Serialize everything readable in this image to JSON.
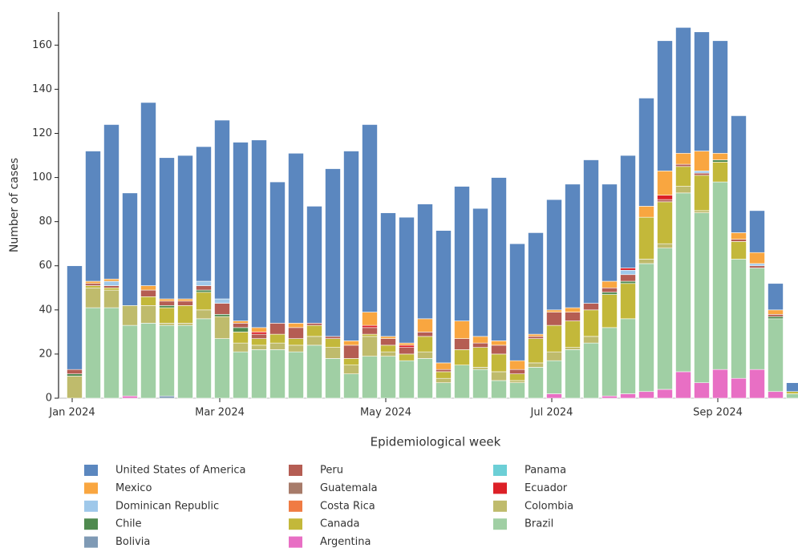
{
  "chart_data": {
    "type": "stacked-bar",
    "x_label": "Epidemiological week",
    "y_label": "Number of cases",
    "categories": [
      "Jan 2024",
      null,
      null,
      null,
      null,
      null,
      null,
      null,
      "Mar 2024",
      null,
      null,
      null,
      null,
      null,
      null,
      null,
      null,
      "May 2024",
      null,
      null,
      null,
      null,
      null,
      null,
      null,
      null,
      "Jul 2024",
      null,
      null,
      null,
      null,
      null,
      null,
      null,
      null,
      "Sep 2024",
      null,
      null,
      null,
      null
    ],
    "ylim": [
      0,
      175
    ],
    "yticks": [
      0,
      20,
      40,
      60,
      80,
      100,
      120,
      140,
      160
    ],
    "series": [
      {
        "name": "United States of America",
        "color": "#5b87bf",
        "values": [
          47,
          59,
          70,
          51,
          83,
          64,
          65,
          61,
          81,
          81,
          85,
          64,
          77,
          53,
          76,
          86,
          85,
          56,
          57,
          52,
          60,
          61,
          58,
          74,
          53,
          46,
          50,
          56,
          65,
          44,
          51,
          49,
          59,
          57,
          54,
          51,
          53,
          19,
          12,
          4
        ]
      },
      {
        "name": "Mexico",
        "color": "#f9a640",
        "values": [
          0,
          1,
          1,
          0,
          2,
          1,
          1,
          0,
          0,
          1,
          2,
          0,
          2,
          0,
          0,
          2,
          6,
          1,
          1,
          6,
          3,
          8,
          3,
          2,
          4,
          1,
          1,
          2,
          0,
          3,
          0,
          5,
          11,
          5,
          9,
          3,
          3,
          5,
          2,
          0
        ]
      },
      {
        "name": "Dominican Republic",
        "color": "#9fc8ea",
        "values": [
          0,
          0,
          2,
          0,
          0,
          0,
          0,
          2,
          2,
          0,
          0,
          0,
          0,
          0,
          0,
          0,
          0,
          0,
          0,
          0,
          0,
          0,
          0,
          0,
          0,
          0,
          0,
          0,
          0,
          0,
          2,
          0,
          0,
          0,
          1,
          0,
          0,
          1,
          0,
          0
        ]
      },
      {
        "name": "Chile",
        "color": "#4f8a4f",
        "values": [
          1,
          0,
          0,
          0,
          0,
          1,
          0,
          1,
          1,
          2,
          0,
          0,
          0,
          0,
          0,
          0,
          0,
          0,
          0,
          0,
          0,
          0,
          0,
          0,
          0,
          0,
          0,
          0,
          0,
          1,
          1,
          0,
          0,
          0,
          0,
          1,
          0,
          0,
          1,
          0
        ]
      },
      {
        "name": "Bolivia",
        "color": "#7f9ab5",
        "values": [
          0,
          0,
          0,
          0,
          0,
          1,
          0,
          0,
          0,
          0,
          0,
          0,
          0,
          0,
          0,
          0,
          0,
          0,
          0,
          0,
          0,
          0,
          0,
          0,
          0,
          0,
          0,
          0,
          0,
          0,
          0,
          0,
          0,
          0,
          0,
          0,
          0,
          0,
          0,
          0
        ]
      },
      {
        "name": "Peru",
        "color": "#b55d53",
        "values": [
          2,
          1,
          1,
          0,
          3,
          2,
          2,
          2,
          5,
          2,
          2,
          5,
          5,
          1,
          1,
          6,
          3,
          3,
          3,
          2,
          1,
          5,
          2,
          4,
          2,
          1,
          6,
          4,
          3,
          2,
          3,
          0,
          1,
          1,
          1,
          0,
          1,
          1,
          1,
          0
        ]
      },
      {
        "name": "Guatemala",
        "color": "#a77b6a",
        "values": [
          0,
          0,
          0,
          0,
          0,
          0,
          0,
          0,
          0,
          0,
          0,
          0,
          0,
          0,
          0,
          0,
          0,
          0,
          0,
          0,
          0,
          0,
          0,
          0,
          0,
          0,
          0,
          0,
          0,
          0,
          0,
          0,
          0,
          0,
          0,
          0,
          0,
          0,
          0,
          0
        ]
      },
      {
        "name": "Costa Rica",
        "color": "#f07b43",
        "values": [
          0,
          0,
          0,
          0,
          0,
          0,
          0,
          0,
          0,
          0,
          0,
          0,
          0,
          0,
          0,
          0,
          0,
          0,
          0,
          0,
          0,
          0,
          0,
          0,
          0,
          0,
          0,
          0,
          0,
          0,
          0,
          0,
          0,
          0,
          0,
          0,
          0,
          0,
          0,
          0
        ]
      },
      {
        "name": "Canada",
        "color": "#c3b83a",
        "values": [
          0,
          1,
          1,
          0,
          4,
          7,
          8,
          8,
          0,
          5,
          3,
          4,
          3,
          5,
          4,
          3,
          1,
          3,
          3,
          7,
          3,
          7,
          9,
          8,
          3,
          11,
          12,
          12,
          12,
          15,
          16,
          19,
          19,
          9,
          16,
          9,
          8,
          0,
          0,
          1
        ]
      },
      {
        "name": "Argentina",
        "color": "#e86fc4",
        "values": [
          0,
          0,
          0,
          1,
          0,
          0,
          0,
          0,
          0,
          0,
          0,
          0,
          0,
          0,
          0,
          0,
          0,
          0,
          0,
          0,
          0,
          0,
          0,
          0,
          0,
          0,
          2,
          0,
          0,
          1,
          2,
          3,
          4,
          12,
          7,
          13,
          9,
          13,
          3,
          0
        ]
      },
      {
        "name": "Panama",
        "color": "#6ccfd6",
        "values": [
          0,
          0,
          0,
          0,
          0,
          0,
          0,
          0,
          0,
          0,
          0,
          0,
          0,
          0,
          0,
          0,
          0,
          0,
          0,
          0,
          0,
          0,
          0,
          0,
          0,
          0,
          0,
          0,
          0,
          0,
          0,
          0,
          0,
          0,
          0,
          0,
          0,
          0,
          0,
          0
        ]
      },
      {
        "name": "Ecuador",
        "color": "#dc2027",
        "values": [
          0,
          0,
          0,
          0,
          0,
          0,
          0,
          0,
          0,
          0,
          1,
          0,
          0,
          0,
          0,
          0,
          1,
          0,
          1,
          0,
          0,
          0,
          0,
          0,
          0,
          0,
          0,
          0,
          0,
          0,
          1,
          0,
          2,
          0,
          0,
          0,
          0,
          0,
          0,
          0
        ]
      },
      {
        "name": "Colombia",
        "color": "#bfbb6c",
        "values": [
          10,
          9,
          8,
          9,
          8,
          1,
          1,
          4,
          10,
          4,
          2,
          3,
          3,
          4,
          5,
          4,
          9,
          2,
          0,
          3,
          2,
          0,
          1,
          4,
          1,
          2,
          4,
          1,
          3,
          0,
          0,
          2,
          2,
          3,
          1,
          0,
          0,
          0,
          0,
          0
        ]
      },
      {
        "name": "Brazil",
        "color": "#a0cfa4",
        "values": [
          0,
          41,
          41,
          32,
          34,
          32,
          33,
          36,
          27,
          21,
          22,
          22,
          21,
          24,
          18,
          11,
          19,
          19,
          17,
          18,
          7,
          15,
          13,
          8,
          7,
          14,
          15,
          22,
          25,
          31,
          34,
          58,
          64,
          81,
          77,
          85,
          54,
          46,
          33,
          2
        ]
      }
    ]
  }
}
